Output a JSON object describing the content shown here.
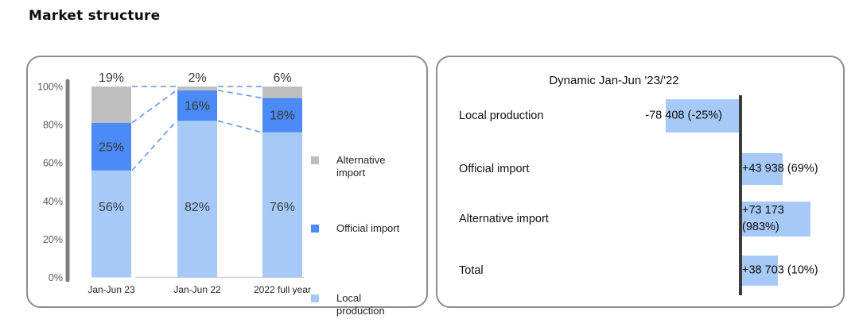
{
  "page": {
    "title": "Market structure"
  },
  "colors": {
    "local_production": "#A7C9F7",
    "official_import": "#4C8BF5",
    "alternative_import": "#BFBFBF",
    "dashed_line": "#4C8BF5",
    "left_axis": "#7F7F7F",
    "right_axis": "#3B3B3B",
    "baseline": "#CFCFCF",
    "panel_border": "#8C8C8C"
  },
  "chart_data": [
    {
      "type": "bar",
      "subtype": "stacked-vertical-100percent",
      "categories": [
        "Jan-Jun 23",
        "Jan-Jun 22",
        "2022 full year"
      ],
      "series": [
        {
          "name": "Local production",
          "values": [
            56,
            82,
            76
          ],
          "color_key": "local_production"
        },
        {
          "name": "Official import",
          "values": [
            25,
            16,
            18
          ],
          "color_key": "official_import"
        },
        {
          "name": "Alternative import",
          "values": [
            19,
            2,
            6
          ],
          "color_key": "alternative_import"
        }
      ],
      "top_labels": [
        "19%",
        "2%",
        "6%"
      ],
      "segment_labels": {
        "local": [
          "56%",
          "82%",
          "76%"
        ],
        "official": [
          "25%",
          "16%",
          "18%"
        ]
      },
      "y_ticks": [
        {
          "label": "100%",
          "value": 100
        },
        {
          "label": "80%",
          "value": 80
        },
        {
          "label": "60%",
          "value": 60
        },
        {
          "label": "40%",
          "value": 40
        },
        {
          "label": "20%",
          "value": 20
        },
        {
          "label": "0%",
          "value": 0
        }
      ],
      "ylim": [
        0,
        100
      ],
      "grid": false,
      "legend_position": "right",
      "legend": [
        {
          "label": "Alternative import",
          "color_key": "alternative_import"
        },
        {
          "label": "Official import",
          "color_key": "official_import"
        },
        {
          "label": "Local production",
          "color_key": "local_production"
        }
      ],
      "connectors": "dashed lines linking segment boundaries between adjacent bars"
    },
    {
      "type": "bar",
      "subtype": "horizontal-diverging",
      "title": "Dynamic Jan-Jun '23/'22",
      "rows": [
        {
          "label": "Local production",
          "value": -78408,
          "pct": "-25%",
          "display": "-78 408 (-25%)"
        },
        {
          "label": "Official import",
          "value": 43938,
          "pct": "69%",
          "display": "+43 938 (69%)"
        },
        {
          "label": "Alternative import",
          "value": 73173,
          "pct": "983%",
          "display": "+73 173\n(983%)"
        },
        {
          "label": "Total",
          "value": 38703,
          "pct": "10%",
          "display": "+38 703 (10%)"
        }
      ]
    }
  ]
}
